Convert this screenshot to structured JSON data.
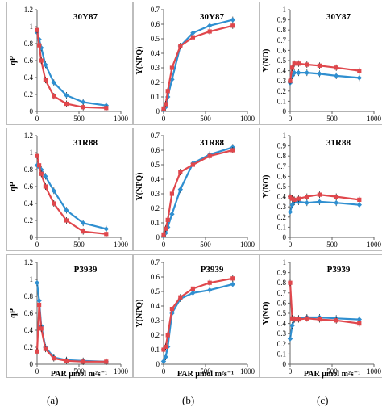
{
  "captions": [
    "(a)",
    "(b)",
    "(c)"
  ],
  "colors": {
    "blue": "#2f8fd0",
    "red": "#e0474c",
    "frame": "#bdbdbd",
    "axis": "#666666"
  },
  "chart_data": [
    {
      "type": "line",
      "title": "30Y87",
      "ylabel": "qP",
      "xlabel": "",
      "xlim": [
        0,
        1000
      ],
      "ylim": [
        0,
        1.2
      ],
      "xticks": [
        "0",
        "500",
        "1000"
      ],
      "yticks": [
        "0",
        "0.2",
        "0.4",
        "0.6",
        "0.8",
        "1",
        "1.2"
      ],
      "x": [
        0,
        25,
        50,
        100,
        200,
        350,
        550,
        825
      ],
      "series": [
        {
          "values": [
            0.93,
            0.85,
            0.75,
            0.55,
            0.34,
            0.19,
            0.11,
            0.07
          ],
          "color": "blue"
        },
        {
          "values": [
            0.96,
            0.78,
            0.6,
            0.37,
            0.18,
            0.09,
            0.05,
            0.04
          ],
          "color": "red"
        }
      ]
    },
    {
      "type": "line",
      "title": "30Y87",
      "ylabel": "Y(NPQ)",
      "xlabel": "",
      "xlim": [
        0,
        1000
      ],
      "ylim": [
        0,
        0.7
      ],
      "xticks": [
        "0",
        "500",
        "1000"
      ],
      "yticks": [
        "0",
        "0.1",
        "0.2",
        "0.3",
        "0.4",
        "0.5",
        "0.6",
        "0.7"
      ],
      "x": [
        0,
        25,
        50,
        100,
        200,
        350,
        550,
        825
      ],
      "series": [
        {
          "values": [
            0.01,
            0.03,
            0.1,
            0.22,
            0.45,
            0.54,
            0.59,
            0.63
          ],
          "color": "blue"
        },
        {
          "values": [
            0.02,
            0.05,
            0.14,
            0.3,
            0.45,
            0.51,
            0.55,
            0.59
          ],
          "color": "red"
        }
      ]
    },
    {
      "type": "line",
      "title": "30Y87",
      "ylabel": "Y(NO)",
      "xlabel": "",
      "xlim": [
        0,
        1000
      ],
      "ylim": [
        0,
        1
      ],
      "xticks": [
        "0",
        "500",
        "1000"
      ],
      "yticks": [
        "0",
        "0.1",
        "0.2",
        "0.3",
        "0.4",
        "0.5",
        "0.6",
        "0.7",
        "0.8",
        "0.9",
        "1"
      ],
      "x": [
        0,
        25,
        50,
        100,
        200,
        350,
        550,
        825
      ],
      "series": [
        {
          "values": [
            0.28,
            0.35,
            0.38,
            0.38,
            0.38,
            0.37,
            0.35,
            0.33
          ],
          "color": "blue"
        },
        {
          "values": [
            0.3,
            0.43,
            0.47,
            0.47,
            0.46,
            0.45,
            0.43,
            0.4
          ],
          "color": "red"
        }
      ]
    },
    {
      "type": "line",
      "title": "31R88",
      "ylabel": "qP",
      "xlabel": "",
      "xlim": [
        0,
        1000
      ],
      "ylim": [
        0,
        1.2
      ],
      "xticks": [
        "0",
        "500",
        "1000"
      ],
      "yticks": [
        "0",
        "0.2",
        "0.4",
        "0.6",
        "0.8",
        "1",
        "1.2"
      ],
      "x": [
        0,
        25,
        50,
        100,
        200,
        350,
        550,
        825
      ],
      "series": [
        {
          "values": [
            0.85,
            0.83,
            0.8,
            0.72,
            0.55,
            0.32,
            0.17,
            0.1
          ],
          "color": "blue"
        },
        {
          "values": [
            0.96,
            0.85,
            0.75,
            0.6,
            0.4,
            0.2,
            0.07,
            0.04
          ],
          "color": "red"
        }
      ]
    },
    {
      "type": "line",
      "title": "31R88",
      "ylabel": "Y(NPQ)",
      "xlabel": "",
      "xlim": [
        0,
        1000
      ],
      "ylim": [
        0,
        0.7
      ],
      "xticks": [
        "0",
        "500",
        "1000"
      ],
      "yticks": [
        "0",
        "0.1",
        "0.2",
        "0.3",
        "0.4",
        "0.5",
        "0.6",
        "0.7"
      ],
      "x": [
        0,
        25,
        50,
        100,
        200,
        350,
        550,
        825
      ],
      "series": [
        {
          "values": [
            0.01,
            0.03,
            0.07,
            0.16,
            0.33,
            0.51,
            0.57,
            0.62
          ],
          "color": "blue"
        },
        {
          "values": [
            0.02,
            0.06,
            0.12,
            0.3,
            0.45,
            0.5,
            0.56,
            0.6
          ],
          "color": "red"
        }
      ]
    },
    {
      "type": "line",
      "title": "31R88",
      "ylabel": "Y(NO)",
      "xlabel": "",
      "xlim": [
        0,
        1000
      ],
      "ylim": [
        0,
        1
      ],
      "xticks": [
        "0",
        "500",
        "1000"
      ],
      "yticks": [
        "0",
        "0.1",
        "0.2",
        "0.3",
        "0.4",
        "0.5",
        "0.6",
        "0.7",
        "0.8",
        "0.9",
        "1"
      ],
      "x": [
        0,
        25,
        50,
        100,
        200,
        350,
        550,
        825
      ],
      "series": [
        {
          "values": [
            0.25,
            0.32,
            0.35,
            0.35,
            0.34,
            0.35,
            0.34,
            0.32
          ],
          "color": "blue"
        },
        {
          "values": [
            0.4,
            0.38,
            0.37,
            0.38,
            0.4,
            0.42,
            0.4,
            0.37
          ],
          "color": "red"
        }
      ]
    },
    {
      "type": "line",
      "title": "P3939",
      "ylabel": "qP",
      "xlabel": "PAR µmol m²s⁻¹",
      "xlim": [
        0,
        1000
      ],
      "ylim": [
        0,
        1.2
      ],
      "xticks": [
        "0",
        "500",
        "1000"
      ],
      "yticks": [
        "0",
        "0.2",
        "0.4",
        "0.6",
        "0.8",
        "1",
        "1.2"
      ],
      "x": [
        0,
        25,
        50,
        100,
        200,
        350,
        550,
        825
      ],
      "series": [
        {
          "values": [
            0.96,
            0.75,
            0.45,
            0.2,
            0.08,
            0.05,
            0.04,
            0.03
          ],
          "color": "blue"
        },
        {
          "values": [
            0.15,
            0.7,
            0.42,
            0.18,
            0.07,
            0.04,
            0.03,
            0.03
          ],
          "color": "red"
        }
      ]
    },
    {
      "type": "line",
      "title": "P3939",
      "ylabel": "Y(NPQ)",
      "xlabel": "PAR µmol m²s⁻¹",
      "xlim": [
        0,
        1000
      ],
      "ylim": [
        0,
        0.7
      ],
      "xticks": [
        "0",
        "500",
        "1000"
      ],
      "yticks": [
        "0",
        "0.1",
        "0.2",
        "0.3",
        "0.4",
        "0.5",
        "0.6",
        "0.7"
      ],
      "x": [
        0,
        25,
        50,
        100,
        200,
        350,
        550,
        825
      ],
      "series": [
        {
          "values": [
            0.02,
            0.05,
            0.12,
            0.35,
            0.45,
            0.49,
            0.51,
            0.55
          ],
          "color": "blue"
        },
        {
          "values": [
            0.1,
            0.12,
            0.2,
            0.38,
            0.46,
            0.52,
            0.56,
            0.59
          ],
          "color": "red"
        }
      ]
    },
    {
      "type": "line",
      "title": "P3939",
      "ylabel": "Y(NO)",
      "xlabel": "PAR µmol m²s⁻¹",
      "xlim": [
        0,
        1000
      ],
      "ylim": [
        0,
        1
      ],
      "xticks": [
        "0",
        "500",
        "1000"
      ],
      "yticks": [
        "0",
        "0.1",
        "0.2",
        "0.3",
        "0.4",
        "0.5",
        "0.6",
        "0.7",
        "0.8",
        "0.9",
        "1"
      ],
      "x": [
        0,
        25,
        50,
        100,
        200,
        350,
        550,
        825
      ],
      "series": [
        {
          "values": [
            0.25,
            0.38,
            0.44,
            0.45,
            0.46,
            0.46,
            0.45,
            0.44
          ],
          "color": "blue"
        },
        {
          "values": [
            0.8,
            0.45,
            0.44,
            0.44,
            0.45,
            0.44,
            0.43,
            0.4
          ],
          "color": "red"
        }
      ]
    }
  ]
}
